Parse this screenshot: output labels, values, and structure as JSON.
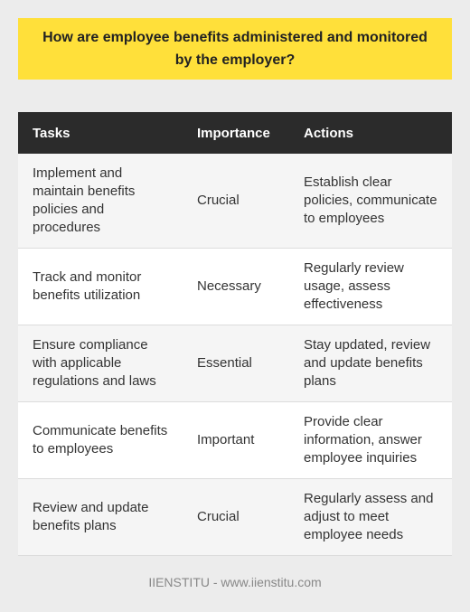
{
  "title": "How are employee benefits administered and monitored by the employer?",
  "table": {
    "headers": [
      "Tasks",
      "Importance",
      "Actions"
    ],
    "rows": [
      {
        "task": "Implement and maintain benefits policies and procedures",
        "importance": "Crucial",
        "action": "Establish clear policies, communicate to employees"
      },
      {
        "task": "Track and monitor benefits utilization",
        "importance": "Necessary",
        "action": "Regularly review usage, assess effectiveness"
      },
      {
        "task": "Ensure compliance with applicable regulations and laws",
        "importance": "Essential",
        "action": "Stay updated, review and update benefits plans"
      },
      {
        "task": "Communicate benefits to employees",
        "importance": "Important",
        "action": "Provide clear information, answer employee inquiries"
      },
      {
        "task": "Review and update benefits plans",
        "importance": "Crucial",
        "action": "Regularly assess and adjust to meet employee needs"
      }
    ]
  },
  "footer": "IIENSTITU - www.iienstitu.com",
  "colors": {
    "title_bg": "#ffe03a",
    "header_bg": "#2b2b2b",
    "page_bg": "#ececec"
  }
}
